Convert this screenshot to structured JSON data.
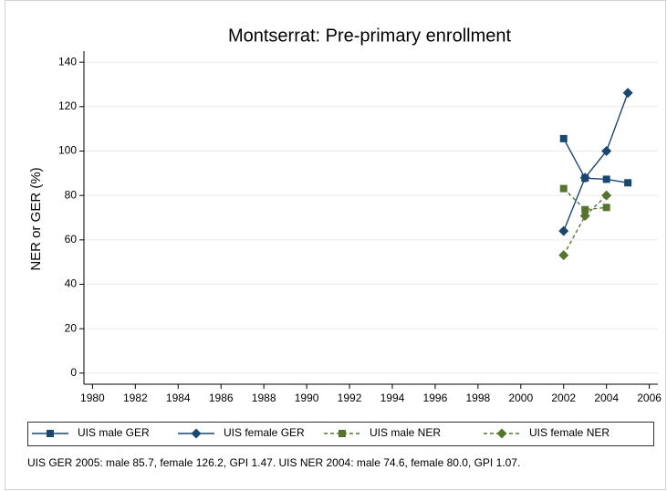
{
  "chart_data": {
    "type": "line",
    "title": "Montserrat: Pre-primary enrollment",
    "y_label": "NER or GER (%)",
    "note": "UIS GER 2005: male 85.7, female 126.2, GPI 1.47. UIS NER 2004: male 74.6, female 80.0, GPI 1.07.",
    "xlim": [
      1979.6,
      2006.4
    ],
    "xticks": [
      1980,
      1982,
      1984,
      1986,
      1988,
      1990,
      1992,
      1994,
      1996,
      1998,
      2000,
      2002,
      2004,
      2006
    ],
    "ylim": [
      -5,
      145
    ],
    "yticks": [
      0,
      20,
      40,
      60,
      80,
      100,
      120,
      140
    ],
    "grid": true,
    "legend": "bottom",
    "series": [
      {
        "name": "UIS male GER",
        "color": "#1a476f",
        "marker": "square",
        "linestyle": "solid",
        "x": [
          2002,
          2003,
          2004,
          2005
        ],
        "values": [
          105.6,
          87.8,
          87.3,
          85.7
        ]
      },
      {
        "name": "UIS female GER",
        "color": "#1a476f",
        "marker": "diamond",
        "linestyle": "solid",
        "x": [
          2002,
          2003,
          2004,
          2005
        ],
        "values": [
          64,
          88,
          100,
          126.2
        ]
      },
      {
        "name": "UIS male NER",
        "color": "#55752f",
        "marker": "square",
        "linestyle": "dash",
        "x": [
          2002,
          2003,
          2004
        ],
        "values": [
          83.1,
          73.6,
          74.6
        ]
      },
      {
        "name": "UIS female NER",
        "color": "#55752f",
        "marker": "diamond",
        "linestyle": "dash",
        "x": [
          2002,
          2003,
          2004
        ],
        "values": [
          53.1,
          70.8,
          80.0
        ]
      }
    ]
  }
}
